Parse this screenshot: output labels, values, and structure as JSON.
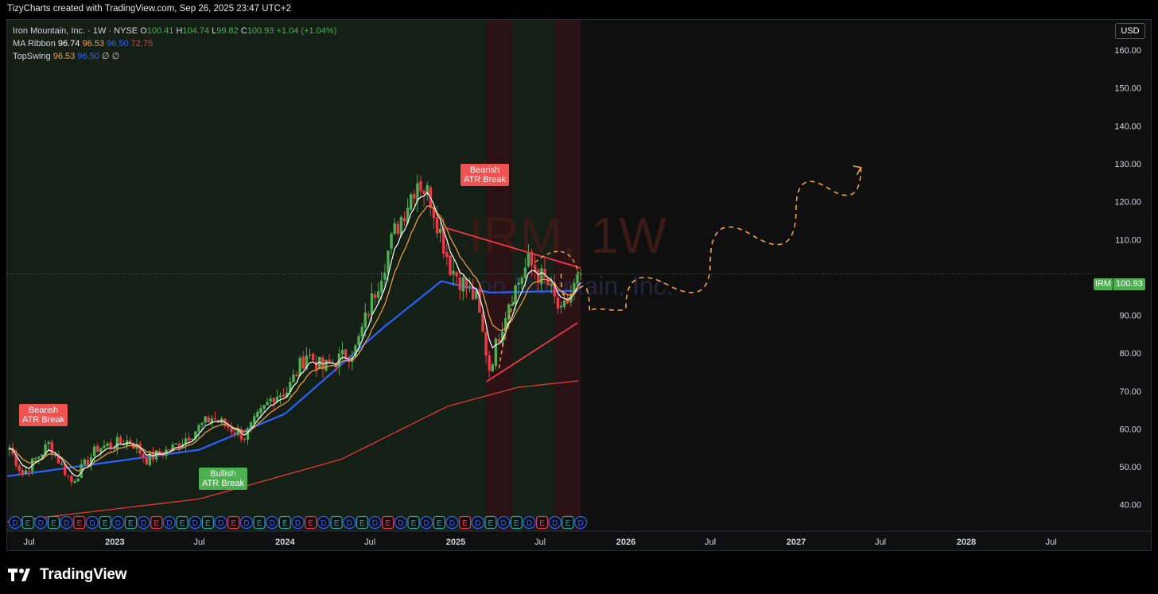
{
  "header": {
    "attribution": "TizyCharts created with TradingView.com, Sep 26, 2025 23:47 UTC+2"
  },
  "legend": {
    "symbol": "Iron Mountain, Inc. · 1W · NYSE",
    "ohlc": {
      "o_label": "O",
      "o": "100.41",
      "h_label": "H",
      "h": "104.74",
      "l_label": "L",
      "l": "99.82",
      "c_label": "C",
      "c": "100.93",
      "change": "+1.04 (+1.04%)"
    },
    "ma_ribbon": {
      "name": "MA Ribbon",
      "v1": "96.74",
      "v2": "96.53",
      "v3": "96.50",
      "v4": "72.75"
    },
    "topswing": {
      "name": "TopSwing",
      "v1": "96.53",
      "v2": "96.50",
      "v3": "∅",
      "v4": "∅"
    }
  },
  "currency_button": "USD",
  "price_tag": {
    "symbol": "IRM",
    "value": "100.93"
  },
  "watermark": {
    "ticker": "IRM, 1W",
    "name": "Iron Mountain, Inc."
  },
  "signals": [
    {
      "text1": "Bearish",
      "text2": "ATR Break",
      "kind": "bear"
    },
    {
      "text1": "Bullish",
      "text2": "ATR Break",
      "kind": "bull"
    },
    {
      "text1": "Bearish",
      "text2": "ATR Break",
      "kind": "bear"
    }
  ],
  "brand": {
    "name": "TradingView"
  },
  "colors": {
    "up": "#4caf50",
    "down": "#f23645",
    "ma_white": "#ffffff",
    "ma_orange": "#f7a23a",
    "ma_blue": "#2962ff",
    "ma_red": "#e53935",
    "projection": "#f7a23a",
    "trendline": "#f23645"
  },
  "chart_data": {
    "type": "candlestick",
    "y_axis": {
      "ticks": [
        40,
        50,
        60,
        70,
        80,
        90,
        100,
        110,
        120,
        130,
        140,
        150,
        160
      ],
      "tick_labels": [
        "40.00",
        "50.00",
        "60.00",
        "70.00",
        "80.00",
        "90.00",
        "",
        "110.00",
        "120.00",
        "130.00",
        "140.00",
        "150.00",
        "160.00"
      ],
      "range": [
        33,
        168
      ]
    },
    "x_axis": {
      "tick_labels": [
        "Jul",
        "2023",
        "Jul",
        "2024",
        "Jul",
        "2025",
        "Jul",
        "2026",
        "Jul",
        "2027",
        "Jul",
        "2028",
        "Jul"
      ],
      "bold": [
        "2023",
        "2024",
        "2025",
        "2026",
        "2027",
        "2028"
      ],
      "range": [
        "2022-05-15",
        "2028-09-30"
      ]
    },
    "last_close": 100.93,
    "anchors": [
      [
        "2022-05-20",
        55
      ],
      [
        "2022-06-17",
        48
      ],
      [
        "2022-08-12",
        56
      ],
      [
        "2022-09-30",
        46
      ],
      [
        "2022-11-25",
        55
      ],
      [
        "2023-02-03",
        57
      ],
      [
        "2023-03-10",
        52
      ],
      [
        "2023-05-05",
        55
      ],
      [
        "2023-07-28",
        63
      ],
      [
        "2023-10-06",
        58
      ],
      [
        "2023-12-08",
        69
      ],
      [
        "2024-01-05",
        70
      ],
      [
        "2024-02-16",
        80
      ],
      [
        "2024-03-22",
        76
      ],
      [
        "2024-05-31",
        81
      ],
      [
        "2024-08-23",
        112
      ],
      [
        "2024-10-11",
        126
      ],
      [
        "2024-11-08",
        121
      ],
      [
        "2024-12-20",
        103
      ],
      [
        "2025-02-14",
        94
      ],
      [
        "2025-03-14",
        76
      ],
      [
        "2025-04-25",
        94
      ],
      [
        "2025-06-06",
        104
      ],
      [
        "2025-07-18",
        98
      ],
      [
        "2025-08-15",
        90
      ],
      [
        "2025-09-26",
        100.93
      ]
    ],
    "ma_sample_points": {
      "ribbon_slow": [
        [
          "2022-05-15",
          35.5
        ],
        [
          "2023-07-01",
          41.5
        ],
        [
          "2024-05-01",
          52
        ],
        [
          "2024-12-15",
          66
        ],
        [
          "2025-05-15",
          71
        ],
        [
          "2025-09-26",
          72.75
        ]
      ],
      "ribbon_blue": [
        [
          "2022-05-15",
          47.5
        ],
        [
          "2023-07-01",
          54.5
        ],
        [
          "2024-01-01",
          64
        ],
        [
          "2024-08-01",
          87
        ],
        [
          "2024-12-01",
          99
        ],
        [
          "2025-03-15",
          96
        ],
        [
          "2025-09-26",
          96.5
        ]
      ]
    },
    "shaded_zones": [
      {
        "from": "2022-05-15",
        "to": "2025-03-08",
        "kind": "bullish"
      },
      {
        "from": "2025-03-08",
        "to": "2025-05-03",
        "kind": "bearish"
      },
      {
        "from": "2025-05-03",
        "to": "2025-08-01",
        "kind": "bullish"
      },
      {
        "from": "2025-08-01",
        "to": "2025-09-26",
        "kind": "bearish"
      }
    ],
    "trendlines": [
      {
        "from": [
          "2024-12-13",
          113
        ],
        "to": [
          "2025-09-26",
          102.5
        ]
      },
      {
        "from": [
          "2025-03-08",
          72.5
        ],
        "to": [
          "2025-09-19",
          88
        ]
      }
    ],
    "projection_path": [
      [
        "2025-08-15",
        101
      ],
      [
        "2025-10-15",
        91
      ],
      [
        "2026-01-01",
        92
      ],
      [
        "2026-07-01",
        104
      ],
      [
        "2027-01-01",
        118
      ],
      [
        "2027-05-20",
        129
      ]
    ],
    "earnings_dividend_markers": [
      "D",
      "E",
      "D",
      "E",
      "D",
      "E",
      "D",
      "E",
      "D",
      "E",
      "D",
      "E",
      "D",
      "E",
      "D",
      "E",
      "D",
      "E",
      "D",
      "E",
      "D",
      "E",
      "D",
      "E",
      "D",
      "E",
      "D",
      "E",
      "D",
      "E",
      "D",
      "E",
      "D",
      "E",
      "D",
      "E",
      "D",
      "E",
      "D",
      "E",
      "D",
      "E",
      "D",
      "E",
      "D"
    ]
  }
}
